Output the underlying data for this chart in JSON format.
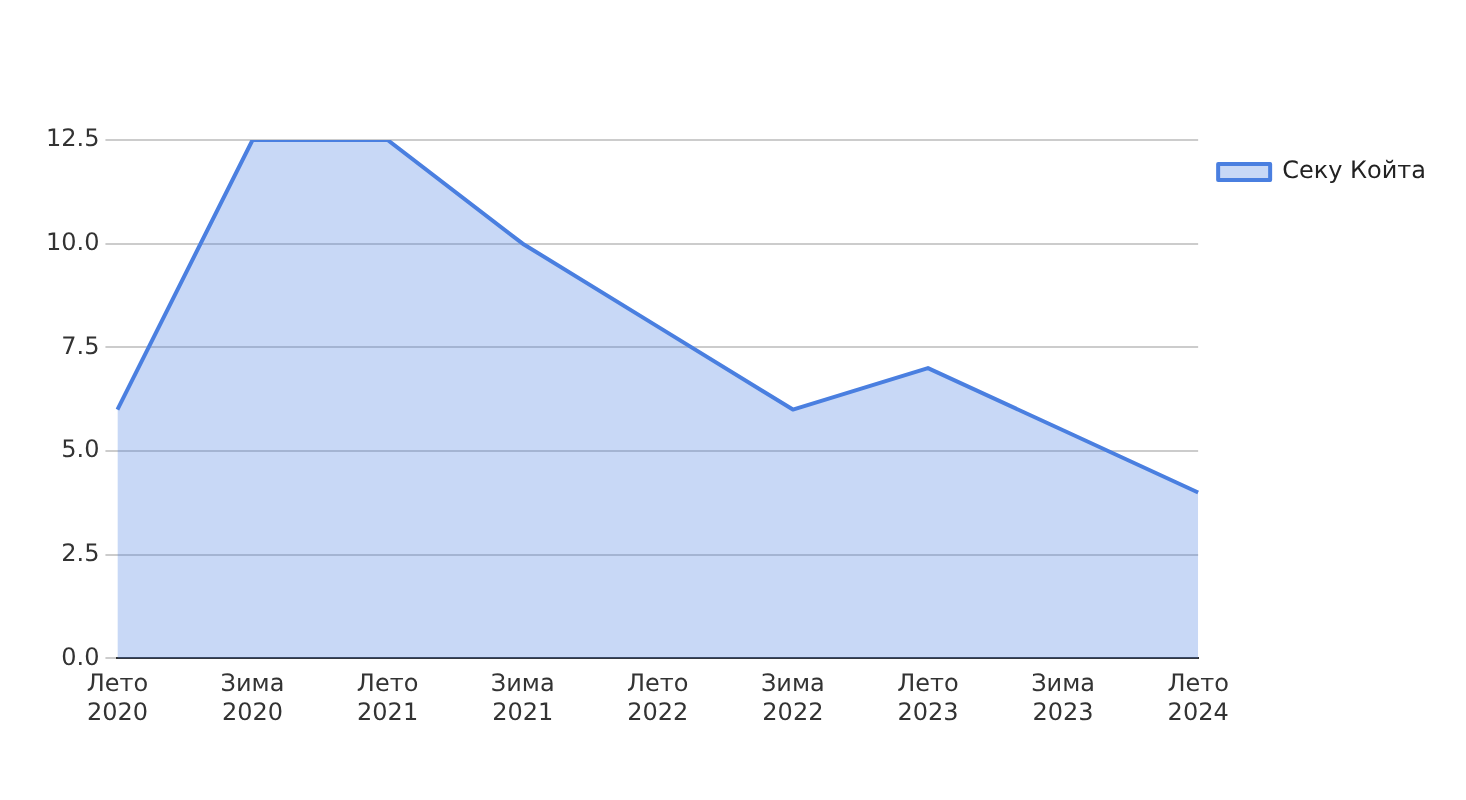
{
  "chart_data": {
    "type": "area",
    "categories": [
      "Лето 2020",
      "Зима 2020",
      "Лето 2021",
      "Зима 2021",
      "Лето 2022",
      "Зима 2022",
      "Лето 2023",
      "Зима 2023",
      "Лето 2024"
    ],
    "series": [
      {
        "name": "Секу Койта",
        "color": "#4a7fe0",
        "values": [
          6,
          12.5,
          12.5,
          10,
          8,
          6,
          7,
          5.5,
          4
        ]
      }
    ],
    "ylim": [
      0,
      12.5
    ],
    "yticks": [
      {
        "value": 0,
        "label": "0.0"
      },
      2.5,
      {
        "value": 5,
        "label": "5.0"
      },
      7.5,
      {
        "value": 10,
        "label": "10.0"
      },
      12.5
    ],
    "grid": "y",
    "legend": "top right"
  }
}
